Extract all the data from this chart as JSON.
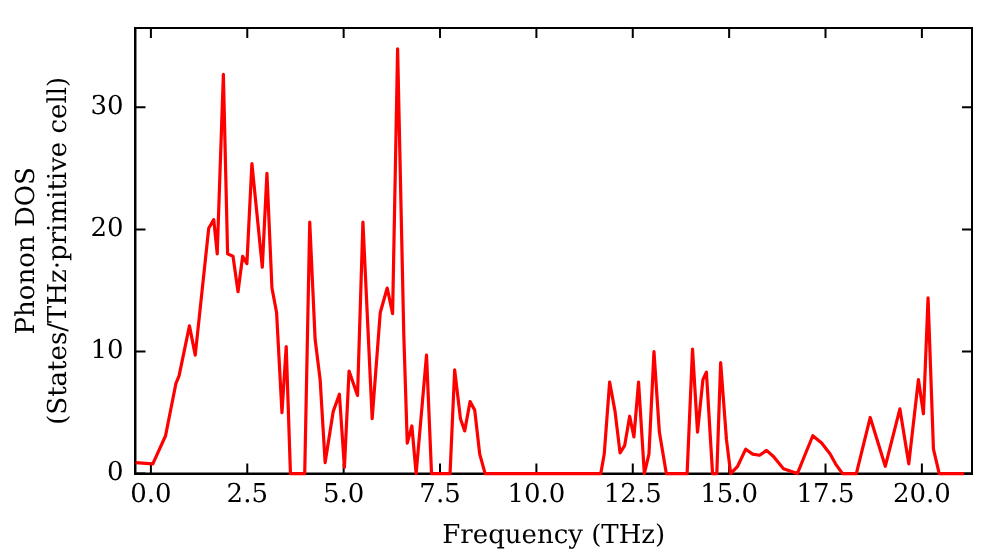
{
  "chart_data": {
    "type": "line",
    "xlabel": "Frequency (THz)",
    "ylabel": "Phonon DOS\n(States/THz·primitive cell)",
    "x": [
      -0.4,
      0.05,
      0.38,
      0.65,
      0.73,
      1.0,
      1.15,
      1.5,
      1.63,
      1.72,
      1.88,
      1.99,
      2.13,
      2.26,
      2.38,
      2.49,
      2.62,
      2.89,
      3.01,
      3.14,
      3.26,
      3.4,
      3.51,
      3.62,
      3.99,
      4.12,
      4.26,
      4.39,
      4.52,
      4.73,
      4.89,
      5.02,
      5.14,
      5.36,
      5.5,
      5.74,
      5.95,
      6.13,
      6.27,
      6.4,
      6.56,
      6.65,
      6.77,
      6.88,
      7.15,
      7.28,
      7.76,
      7.88,
      8.03,
      8.14,
      8.28,
      8.4,
      8.53,
      8.67,
      11.67,
      11.76,
      11.9,
      12.04,
      12.17,
      12.29,
      12.42,
      12.53,
      12.65,
      12.8,
      12.92,
      13.05,
      13.19,
      13.37,
      13.91,
      14.05,
      14.18,
      14.32,
      14.41,
      14.57,
      14.68,
      14.78,
      14.93,
      15.04,
      15.22,
      15.43,
      15.61,
      15.79,
      15.97,
      16.15,
      16.41,
      16.77,
      16.95,
      17.17,
      17.4,
      17.62,
      17.76,
      17.94,
      18.3,
      18.66,
      19.05,
      19.43,
      19.66,
      19.91,
      20.04,
      20.16,
      20.3,
      20.45,
      21.1
    ],
    "series": [
      {
        "color": "#ff0000",
        "values": [
          0.9,
          0.8,
          3.1,
          7.4,
          8.0,
          12.1,
          9.7,
          20.1,
          20.8,
          18.0,
          32.7,
          18.0,
          17.8,
          14.9,
          17.8,
          17.2,
          25.4,
          16.9,
          24.6,
          15.2,
          13.2,
          5.0,
          10.4,
          0,
          0,
          20.6,
          11.0,
          7.7,
          0.9,
          5.1,
          6.5,
          0.5,
          8.4,
          6.4,
          20.6,
          4.5,
          13.2,
          15.2,
          13.1,
          34.8,
          11.4,
          2.5,
          3.9,
          0,
          9.7,
          0,
          0,
          8.5,
          4.5,
          3.5,
          5.9,
          5.2,
          1.6,
          0,
          0,
          1.6,
          7.5,
          5.1,
          1.7,
          2.3,
          4.7,
          3.0,
          7.5,
          0,
          1.6,
          10.0,
          3.4,
          0,
          0,
          10.2,
          3.4,
          7.7,
          8.3,
          0,
          0,
          9.1,
          2.8,
          0,
          0.6,
          2.0,
          1.6,
          1.5,
          1.9,
          1.4,
          0.4,
          0,
          1.4,
          3.1,
          2.5,
          1.6,
          0.8,
          0,
          0,
          4.6,
          0.6,
          5.3,
          0.8,
          7.7,
          4.9,
          14.4,
          2.0,
          0,
          0
        ]
      }
    ],
    "xlim": [
      -0.4,
      21.3
    ],
    "ylim": [
      0,
      36.5
    ],
    "xticks": [
      {
        "value": 0,
        "label": "0.0"
      },
      {
        "value": 2.5,
        "label": "2.5"
      },
      {
        "value": 5,
        "label": "5.0"
      },
      {
        "value": 7.5,
        "label": "7.5"
      },
      {
        "value": 10,
        "label": "10.0"
      },
      {
        "value": 12.5,
        "label": "12.5"
      },
      {
        "value": 15,
        "label": "15.0"
      },
      {
        "value": 17.5,
        "label": "17.5"
      },
      {
        "value": 20,
        "label": "20.0"
      }
    ],
    "yticks": [
      0,
      10,
      20,
      30
    ],
    "grid": false,
    "legend": false,
    "marker": "none",
    "line_style": "solid"
  }
}
